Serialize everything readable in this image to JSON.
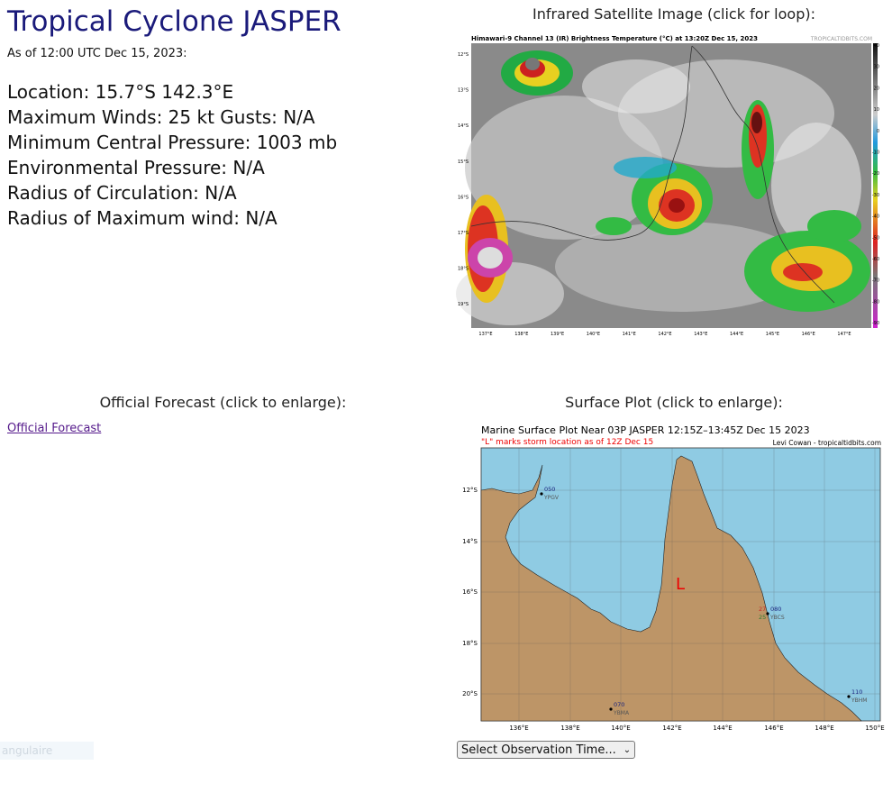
{
  "storm": {
    "title": "Tropical Cyclone JASPER",
    "as_of": "As of 12:00 UTC Dec 15, 2023:",
    "location": "Location: 15.7°S 142.3°E",
    "max_winds": "Maximum Winds: 25 kt  Gusts: N/A",
    "min_pressure": "Minimum Central Pressure: 1003 mb",
    "env_pressure": "Environmental Pressure: N/A",
    "radius_circ": "Radius of Circulation: N/A",
    "radius_max_wind": "Radius of Maximum wind: N/A"
  },
  "captions": {
    "satellite": "Infrared Satellite Image (click for loop):",
    "forecast": "Official Forecast (click to enlarge):",
    "surface": "Surface Plot (click to enlarge):"
  },
  "forecast_link": "Official Forecast",
  "satellite": {
    "header": "Himawari-9 Channel 13 (IR) Brightness Temperature (°C) at 13:20Z Dec 15, 2023",
    "credit": "TROPICALTIDBITS.COM",
    "lat_labels": [
      "12°S",
      "13°S",
      "14°S",
      "15°S",
      "16°S",
      "17°S",
      "18°S",
      "19°S"
    ],
    "lon_labels": [
      "137°E",
      "138°E",
      "139°E",
      "140°E",
      "141°E",
      "142°E",
      "143°E",
      "144°E",
      "145°E",
      "146°E",
      "147°E"
    ],
    "scale_labels": [
      "40",
      "30",
      "20",
      "10",
      "0",
      "-10",
      "-20",
      "-30",
      "-40",
      "-50",
      "-60",
      "-70",
      "-80",
      "-90"
    ]
  },
  "surface_plot": {
    "title": "Marine Surface Plot Near 03P JASPER 12:15Z–13:45Z Dec 15 2023",
    "subtitle": "\"L\" marks storm location as of 12Z Dec 15",
    "credit": "Levi Cowan - tropicaltidbits.com",
    "storm_marker": "L",
    "lat_labels": [
      "12°S",
      "14°S",
      "16°S",
      "18°S",
      "20°S"
    ],
    "lon_labels": [
      "136°E",
      "138°E",
      "140°E",
      "142°E",
      "144°E",
      "146°E",
      "148°E",
      "150°E"
    ],
    "stations": [
      {
        "pressure": "050",
        "id": "YPGV"
      },
      {
        "pressure": "080",
        "id": "YBCS",
        "temp": "27",
        "dew": "25"
      },
      {
        "pressure": "110",
        "id": "YBHM"
      },
      {
        "pressure": "070",
        "id": "YBMA"
      }
    ]
  },
  "observation_select": "Select Observation Time...",
  "hidden_text": "angulaire"
}
